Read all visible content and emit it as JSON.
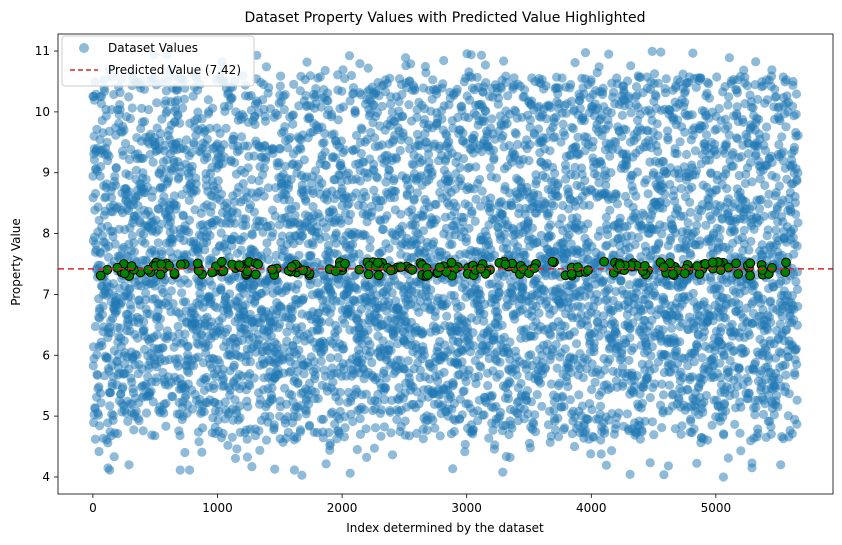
{
  "chart_data": {
    "type": "scatter",
    "title": "Dataset Property Values with Predicted Value Highlighted",
    "xlabel": "Index determined by the dataset",
    "ylabel": "Property Value",
    "xlim": [
      -280,
      5940
    ],
    "ylim": [
      3.72,
      11.28
    ],
    "x_ticks": [
      0,
      1000,
      2000,
      3000,
      4000,
      5000
    ],
    "y_ticks": [
      4,
      5,
      6,
      7,
      8,
      9,
      10,
      11
    ],
    "x_tick_labels": [
      "0",
      "1000",
      "2000",
      "3000",
      "4000",
      "5000"
    ],
    "y_tick_labels": [
      "4",
      "5",
      "6",
      "7",
      "8",
      "9",
      "10",
      "11"
    ],
    "grid": false,
    "legend_position": "top-left",
    "series": [
      {
        "name": "Dataset Values",
        "kind": "scatter",
        "color": "#1f77b4",
        "alpha": 0.5,
        "count": 5660,
        "value_range": [
          4.0,
          11.0
        ],
        "approx_mean": 7.3,
        "sample_points": [
          [
            20,
            4.62
          ],
          [
            120,
            4.56
          ],
          [
            290,
            4.2
          ],
          [
            1050,
            10.73
          ],
          [
            2210,
            10.72
          ],
          [
            2510,
            10.89
          ],
          [
            3150,
            10.77
          ],
          [
            3290,
            4.08
          ],
          [
            3870,
            10.81
          ],
          [
            4140,
            10.95
          ],
          [
            5060,
            4.0
          ],
          [
            5200,
            4.43
          ],
          [
            5290,
            4.23
          ],
          [
            5290,
            4.15
          ],
          [
            5450,
            10.69
          ],
          [
            5620,
            10.5
          ],
          [
            10,
            9.6
          ],
          [
            250,
            9.7
          ],
          [
            700,
            9.1
          ],
          [
            1500,
            9.4
          ],
          [
            2400,
            9.2
          ],
          [
            3600,
            9.5
          ],
          [
            4500,
            9.0
          ],
          [
            5500,
            9.3
          ],
          [
            400,
            5.5
          ],
          [
            1400,
            5.2
          ],
          [
            2600,
            5.4
          ],
          [
            3700,
            5.1
          ],
          [
            4700,
            5.3
          ],
          [
            5400,
            5.6
          ]
        ]
      },
      {
        "name": "",
        "kind": "highlight",
        "description_note": "",
        "color": "#008000",
        "edge_color": "#000000",
        "count": 200,
        "value_range": [
          7.3,
          7.54
        ]
      },
      {
        "name": "Predicted Value (7.42)",
        "kind": "hline",
        "color": "#d62728",
        "linestyle": "dashed",
        "value": 7.42
      }
    ]
  }
}
